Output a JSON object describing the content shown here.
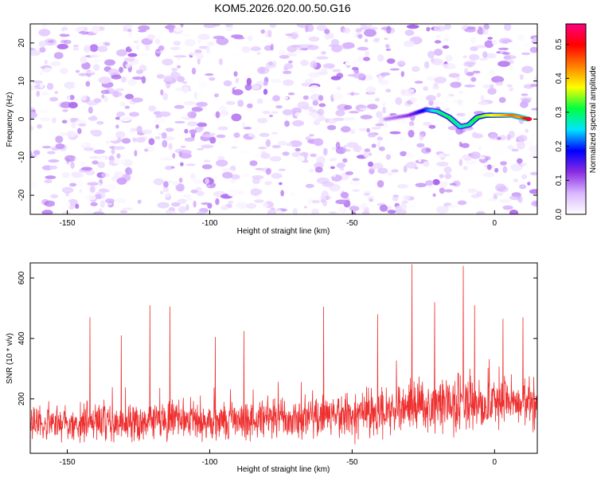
{
  "figure_title": "KOM5.2026.020.00.50.G16",
  "chart_data": [
    {
      "type": "heatmap",
      "xlabel": "Height of straight line (km)",
      "ylabel": "Frequency (Hz)",
      "xlim": [
        -163,
        15
      ],
      "ylim": [
        -25,
        25
      ],
      "xticks": [
        -150,
        -100,
        -50,
        0
      ],
      "yticks": [
        -20,
        -10,
        0,
        10,
        20
      ],
      "colorbar": {
        "label": "Normalized spectral amplitude",
        "range": [
          0,
          0.56
        ],
        "ticks": [
          0.0,
          0.1,
          0.2,
          0.3,
          0.4,
          0.5
        ],
        "colors": [
          "#ffffff",
          "#d9b6ff",
          "#8a2be2",
          "#0000ff",
          "#00e5ff",
          "#00ff40",
          "#ffff00",
          "#ff8000",
          "#ff0000",
          "#ff0080"
        ]
      },
      "noise_level": [
        0.0,
        0.1
      ],
      "ridge": {
        "description": "Strong signal track near 0 Hz from about -40 km to 12 km",
        "points": [
          {
            "x": -38,
            "y": 0.0,
            "v": 0.08
          },
          {
            "x": -30,
            "y": 1.0,
            "v": 0.12
          },
          {
            "x": -24,
            "y": 2.5,
            "v": 0.2
          },
          {
            "x": -20,
            "y": 2.0,
            "v": 0.28
          },
          {
            "x": -16,
            "y": 0.5,
            "v": 0.3
          },
          {
            "x": -12,
            "y": -2.0,
            "v": 0.27
          },
          {
            "x": -9,
            "y": -1.5,
            "v": 0.28
          },
          {
            "x": -6,
            "y": 0.5,
            "v": 0.32
          },
          {
            "x": -3,
            "y": 1.0,
            "v": 0.35
          },
          {
            "x": 0,
            "y": 1.0,
            "v": 0.38
          },
          {
            "x": 3,
            "y": 1.0,
            "v": 0.4
          },
          {
            "x": 6,
            "y": 1.0,
            "v": 0.45
          },
          {
            "x": 9,
            "y": 0.5,
            "v": 0.42
          },
          {
            "x": 12,
            "y": 0.0,
            "v": 0.53
          }
        ]
      }
    },
    {
      "type": "line",
      "xlabel": "Height of straight line (km)",
      "ylabel": "SNR (10 * v/v)",
      "xlim": [
        -163,
        15
      ],
      "ylim": [
        20,
        650
      ],
      "xticks": [
        -150,
        -100,
        -50,
        0
      ],
      "yticks": [
        200,
        400,
        600
      ],
      "color": "#ee3030",
      "series": {
        "name": "SNR",
        "x_start": -163,
        "x_end": 15,
        "n_points": 1700,
        "baseline": [
          {
            "x": -163,
            "mean": 120,
            "spread": 60
          },
          {
            "x": -100,
            "mean": 125,
            "spread": 65
          },
          {
            "x": -50,
            "mean": 140,
            "spread": 75
          },
          {
            "x": -25,
            "mean": 175,
            "spread": 90
          },
          {
            "x": 15,
            "mean": 190,
            "spread": 95
          }
        ],
        "peaks": [
          {
            "x": -142,
            "y": 470
          },
          {
            "x": -131,
            "y": 410
          },
          {
            "x": -121,
            "y": 510
          },
          {
            "x": -114,
            "y": 505
          },
          {
            "x": -98,
            "y": 405
          },
          {
            "x": -88,
            "y": 425
          },
          {
            "x": -60,
            "y": 505
          },
          {
            "x": -41,
            "y": 480
          },
          {
            "x": -29,
            "y": 645
          },
          {
            "x": -21,
            "y": 520
          },
          {
            "x": -11,
            "y": 640
          },
          {
            "x": -7,
            "y": 510
          },
          {
            "x": 3,
            "y": 465
          },
          {
            "x": 10,
            "y": 470
          }
        ]
      }
    }
  ]
}
